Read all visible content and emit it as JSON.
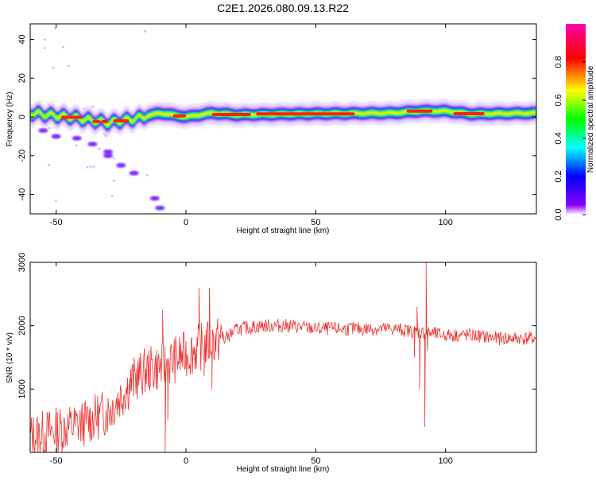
{
  "title": "C2E1.2026.080.09.13.R22",
  "chart_data": [
    {
      "type": "heatmap",
      "xlabel": "Height of straight line (km)",
      "ylabel": "Frequency (Hz)",
      "xlim": [
        -60,
        135
      ],
      "ylim": [
        -50,
        48
      ],
      "xticks": [
        "-50",
        "0",
        "50",
        "100"
      ],
      "yticks": [
        "40",
        "20",
        "0",
        "-20",
        "-40"
      ],
      "colorbar": {
        "label": "Normalized spectral amplitude",
        "range": [
          0,
          1
        ],
        "ticks": [
          "0.0",
          "0.2",
          "0.4",
          "0.6",
          "0.8"
        ],
        "colors": [
          "#ffffff",
          "#8800ff",
          "#0000ff",
          "#00ffff",
          "#00ff00",
          "#ffff00",
          "#ff0000",
          "#ff00aa"
        ]
      },
      "band_center_hz": [
        [
          -60,
          2
        ],
        [
          -45,
          0
        ],
        [
          -30,
          -3
        ],
        [
          -20,
          -1
        ],
        [
          -10,
          2
        ],
        [
          0,
          0
        ],
        [
          10,
          2
        ],
        [
          20,
          1
        ],
        [
          40,
          1.5
        ],
        [
          80,
          2
        ],
        [
          90,
          3
        ],
        [
          100,
          3
        ],
        [
          110,
          1.5
        ],
        [
          135,
          2
        ]
      ],
      "side_streaks": [
        {
          "points": [
            [
              -55,
              -7
            ],
            [
              -50,
              -10
            ],
            [
              -42,
              -11
            ],
            [
              -36,
              -14
            ],
            [
              -30,
              -18
            ]
          ]
        },
        {
          "points": [
            [
              -30,
              -20
            ],
            [
              -25,
              -25
            ],
            [
              -20,
              -29
            ]
          ]
        },
        {
          "points": [
            [
              -12,
              -42
            ],
            [
              -10,
              -47
            ]
          ]
        }
      ]
    },
    {
      "type": "line",
      "xlabel": "Height of straight line (km)",
      "ylabel": "SNR (10 * v/v)",
      "xlim": [
        -60,
        135
      ],
      "ylim": [
        0,
        3000
      ],
      "xticks": [
        "-50",
        "0",
        "50",
        "100"
      ],
      "yticks": [
        "3000",
        "2000",
        "1000"
      ],
      "color": "#ee3333",
      "trend": [
        [
          -60,
          250
        ],
        [
          -50,
          350
        ],
        [
          -40,
          450
        ],
        [
          -30,
          650
        ],
        [
          -25,
          900
        ],
        [
          -20,
          1150
        ],
        [
          -15,
          1300
        ],
        [
          -10,
          1350
        ],
        [
          -5,
          1450
        ],
        [
          0,
          1550
        ],
        [
          5,
          1650
        ],
        [
          10,
          1750
        ],
        [
          15,
          1800
        ],
        [
          20,
          1950
        ],
        [
          30,
          2000
        ],
        [
          40,
          2000
        ],
        [
          50,
          1950
        ],
        [
          60,
          1950
        ],
        [
          70,
          1950
        ],
        [
          80,
          1950
        ],
        [
          90,
          1900
        ],
        [
          100,
          1850
        ],
        [
          110,
          1850
        ],
        [
          120,
          1800
        ],
        [
          135,
          1800
        ]
      ],
      "spikes": [
        [
          -9,
          2250
        ],
        [
          -8,
          0
        ],
        [
          -7,
          500
        ],
        [
          5,
          2600
        ],
        [
          7,
          1200
        ],
        [
          9,
          2600
        ],
        [
          10,
          1000
        ],
        [
          88,
          1500
        ],
        [
          89,
          2300
        ],
        [
          90,
          1000
        ],
        [
          92,
          400
        ],
        [
          92.5,
          3000
        ],
        [
          93,
          1600
        ]
      ]
    }
  ]
}
